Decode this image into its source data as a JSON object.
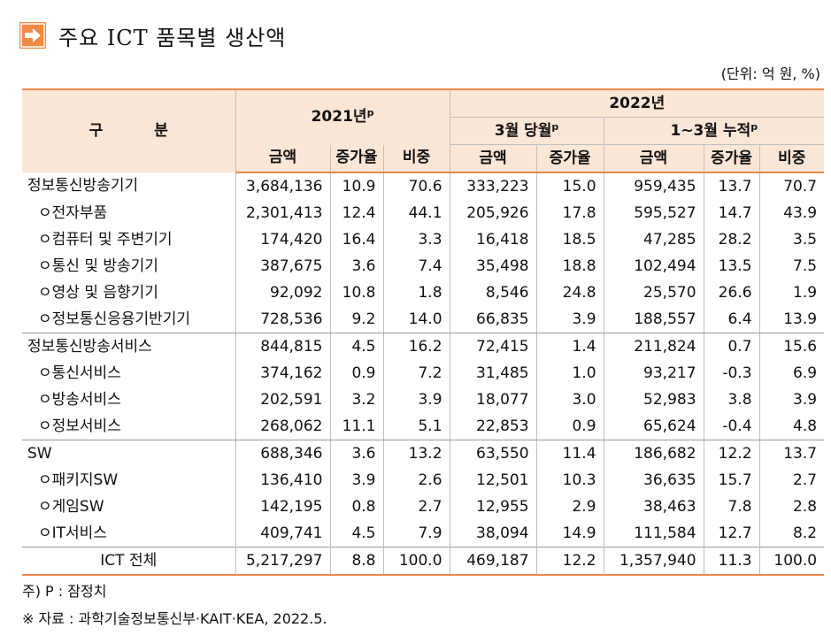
{
  "title": "주요 ICT 품목별 생산액",
  "unit": "(단위: 억 원, %)",
  "header": {
    "category": "구 분",
    "year2021": "2021년",
    "year2021_sup": "p",
    "year2022": "2022년",
    "march": "3월 당월",
    "march_sup": "p",
    "cumulative": "1~3월 누적",
    "cumulative_sup": "p",
    "amount": "금액",
    "growth": "증가율",
    "share": "비중"
  },
  "rows": [
    {
      "label": "정보통신방송기기",
      "sub": false,
      "v": [
        "3,684,136",
        "10.9",
        "70.6",
        "333,223",
        "15.0",
        "959,435",
        "13.7",
        "70.7"
      ]
    },
    {
      "label": "ㅇ전자부품",
      "sub": true,
      "v": [
        "2,301,413",
        "12.4",
        "44.1",
        "205,926",
        "17.8",
        "595,527",
        "14.7",
        "43.9"
      ]
    },
    {
      "label": "ㅇ컴퓨터 및 주변기기",
      "sub": true,
      "v": [
        "174,420",
        "16.4",
        "3.3",
        "16,418",
        "18.5",
        "47,285",
        "28.2",
        "3.5"
      ]
    },
    {
      "label": "ㅇ통신 및 방송기기",
      "sub": true,
      "v": [
        "387,675",
        "3.6",
        "7.4",
        "35,498",
        "18.8",
        "102,494",
        "13.5",
        "7.5"
      ]
    },
    {
      "label": "ㅇ영상 및 음향기기",
      "sub": true,
      "v": [
        "92,092",
        "10.8",
        "1.8",
        "8,546",
        "24.8",
        "25,570",
        "26.6",
        "1.9"
      ]
    },
    {
      "label": "ㅇ정보통신응용기반기기",
      "sub": true,
      "v": [
        "728,536",
        "9.2",
        "14.0",
        "66,835",
        "3.9",
        "188,557",
        "6.4",
        "13.9"
      ]
    },
    {
      "label": "정보통신방송서비스",
      "sub": false,
      "v": [
        "844,815",
        "4.5",
        "16.2",
        "72,415",
        "1.4",
        "211,824",
        "0.7",
        "15.6"
      ]
    },
    {
      "label": "ㅇ통신서비스",
      "sub": true,
      "v": [
        "374,162",
        "0.9",
        "7.2",
        "31,485",
        "1.0",
        "93,217",
        "-0.3",
        "6.9"
      ]
    },
    {
      "label": "ㅇ방송서비스",
      "sub": true,
      "v": [
        "202,591",
        "3.2",
        "3.9",
        "18,077",
        "3.0",
        "52,983",
        "3.8",
        "3.9"
      ]
    },
    {
      "label": "ㅇ정보서비스",
      "sub": true,
      "v": [
        "268,062",
        "11.1",
        "5.1",
        "22,853",
        "0.9",
        "65,624",
        "-0.4",
        "4.8"
      ]
    },
    {
      "label": "SW",
      "sub": false,
      "v": [
        "688,346",
        "3.6",
        "13.2",
        "63,550",
        "11.4",
        "186,682",
        "12.2",
        "13.7"
      ]
    },
    {
      "label": "ㅇ패키지SW",
      "sub": true,
      "v": [
        "136,410",
        "3.9",
        "2.6",
        "12,501",
        "10.3",
        "36,635",
        "15.7",
        "2.7"
      ]
    },
    {
      "label": "ㅇ게임SW",
      "sub": true,
      "v": [
        "142,195",
        "0.8",
        "2.7",
        "12,955",
        "2.9",
        "38,463",
        "7.8",
        "2.8"
      ]
    },
    {
      "label": "ㅇIT서비스",
      "sub": true,
      "v": [
        "409,741",
        "4.5",
        "7.9",
        "38,094",
        "14.9",
        "111,584",
        "12.7",
        "8.2"
      ]
    },
    {
      "label": "ICT 전체",
      "sub": false,
      "v": [
        "5,217,297",
        "8.8",
        "100.0",
        "469,187",
        "12.2",
        "1,357,940",
        "11.3",
        "100.0"
      ]
    }
  ],
  "notes": {
    "note1": "주) P : 잠정치",
    "source": "※ 자료 : 과학기술정보통신부·KAIT·KEA, 2022.5."
  },
  "colors": {
    "header_bg": "#fce6d6",
    "rule": "#f08a47",
    "icon": "#f08a47"
  },
  "icon": "arrow-right-icon"
}
